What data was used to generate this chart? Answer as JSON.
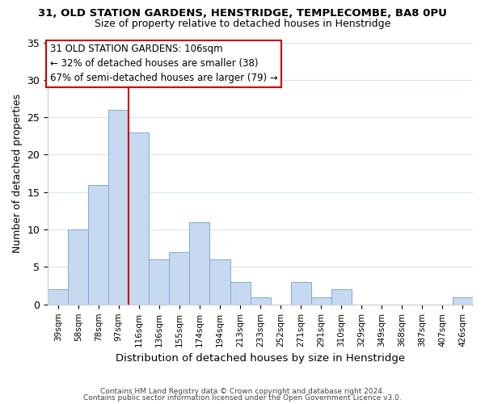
{
  "title_line1": "31, OLD STATION GARDENS, HENSTRIDGE, TEMPLECOMBE, BA8 0PU",
  "title_line2": "Size of property relative to detached houses in Henstridge",
  "xlabel": "Distribution of detached houses by size in Henstridge",
  "ylabel": "Number of detached properties",
  "bar_labels": [
    "39sqm",
    "58sqm",
    "78sqm",
    "97sqm",
    "116sqm",
    "136sqm",
    "155sqm",
    "174sqm",
    "194sqm",
    "213sqm",
    "233sqm",
    "252sqm",
    "271sqm",
    "291sqm",
    "310sqm",
    "329sqm",
    "349sqm",
    "368sqm",
    "387sqm",
    "407sqm",
    "426sqm"
  ],
  "bar_values": [
    2,
    10,
    16,
    26,
    23,
    6,
    7,
    11,
    6,
    3,
    1,
    0,
    3,
    1,
    2,
    0,
    0,
    0,
    0,
    0,
    1
  ],
  "bar_color": "#c7d9f0",
  "bar_edge_color": "#7aadd4",
  "vline_color": "#cc0000",
  "ylim": [
    0,
    35
  ],
  "yticks": [
    0,
    5,
    10,
    15,
    20,
    25,
    30,
    35
  ],
  "annotation_line1": "31 OLD STATION GARDENS: 106sqm",
  "annotation_line2": "← 32% of detached houses are smaller (38)",
  "annotation_line3": "67% of semi-detached houses are larger (79) →",
  "footer_line1": "Contains HM Land Registry data © Crown copyright and database right 2024.",
  "footer_line2": "Contains public sector information licensed under the Open Government Licence v3.0.",
  "background_color": "#ffffff",
  "grid_color": "#d8e4f0"
}
